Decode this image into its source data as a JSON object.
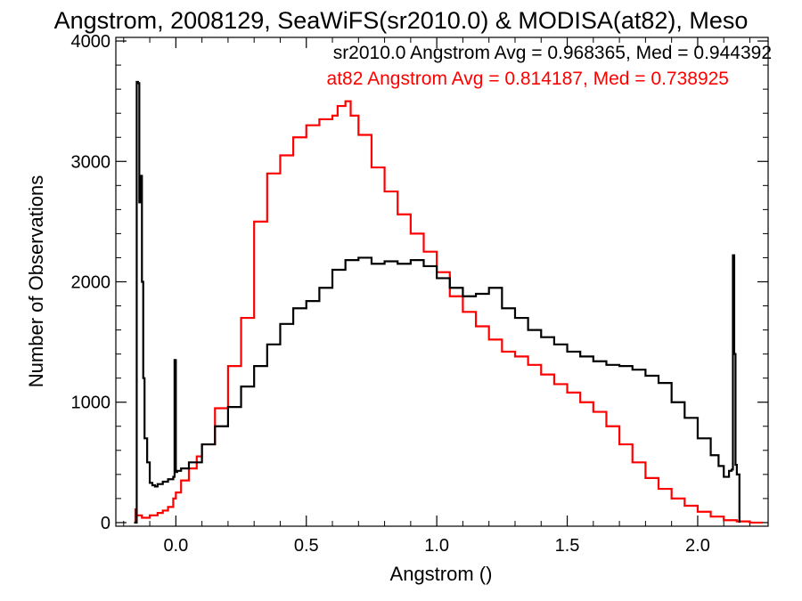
{
  "chart_data": {
    "type": "line",
    "title": "Angstrom, 2008129, SeaWiFS(sr2010.0) & MODISA(at82), Meso",
    "xlabel": "Angstrom ()",
    "ylabel": "Number of Observations",
    "xlim": [
      -0.23,
      2.27
    ],
    "ylim": [
      -30,
      4030
    ],
    "x_ticks": [
      0.0,
      0.5,
      1.0,
      1.5,
      2.0
    ],
    "x_tick_labels": [
      "0.0",
      "0.5",
      "1.0",
      "1.5",
      "2.0"
    ],
    "y_ticks": [
      0,
      1000,
      2000,
      3000,
      4000
    ],
    "y_tick_labels": [
      "0",
      "1000",
      "2000",
      "3000",
      "4000"
    ],
    "grid": false,
    "step": true,
    "annotations": [
      {
        "text": "sr2010.0 Angstrom Avg = 0.968365, Med = 0.944392",
        "color": "#000000"
      },
      {
        "text": "at82 Angstrom Avg = 0.814187, Med = 0.738925",
        "color": "#ff0000"
      }
    ],
    "series": [
      {
        "name": "sr2010.0",
        "color": "#000000",
        "x": [
          -0.16,
          -0.15,
          -0.145,
          -0.14,
          -0.135,
          -0.13,
          -0.125,
          -0.12,
          -0.11,
          -0.1,
          -0.09,
          -0.08,
          -0.07,
          -0.05,
          -0.03,
          -0.01,
          -0.005,
          0.0,
          0.005,
          0.02,
          0.05,
          0.1,
          0.15,
          0.2,
          0.25,
          0.3,
          0.35,
          0.4,
          0.45,
          0.5,
          0.55,
          0.6,
          0.65,
          0.7,
          0.75,
          0.8,
          0.85,
          0.9,
          0.95,
          1.0,
          1.05,
          1.1,
          1.15,
          1.2,
          1.25,
          1.3,
          1.35,
          1.4,
          1.45,
          1.5,
          1.55,
          1.6,
          1.65,
          1.7,
          1.75,
          1.8,
          1.85,
          1.9,
          1.95,
          2.0,
          2.05,
          2.08,
          2.1,
          2.12,
          2.13,
          2.135,
          2.14,
          2.145,
          2.15,
          2.16
        ],
        "y": [
          0,
          3660,
          3650,
          2660,
          2880,
          2000,
          1200,
          700,
          500,
          330,
          310,
          300,
          320,
          340,
          360,
          380,
          1350,
          420,
          430,
          450,
          500,
          650,
          800,
          960,
          1130,
          1300,
          1480,
          1650,
          1780,
          1840,
          1950,
          2100,
          2180,
          2200,
          2150,
          2170,
          2150,
          2180,
          2130,
          2030,
          1950,
          1880,
          1900,
          1950,
          1780,
          1700,
          1600,
          1540,
          1480,
          1420,
          1380,
          1340,
          1310,
          1300,
          1270,
          1220,
          1160,
          1000,
          870,
          700,
          560,
          470,
          380,
          430,
          440,
          2220,
          1400,
          480,
          400,
          0
        ]
      },
      {
        "name": "at82",
        "color": "#ff0000",
        "x": [
          -0.16,
          -0.155,
          -0.15,
          -0.13,
          -0.1,
          -0.07,
          -0.05,
          -0.03,
          -0.01,
          0.0,
          0.02,
          0.05,
          0.08,
          0.1,
          0.15,
          0.2,
          0.25,
          0.3,
          0.35,
          0.4,
          0.45,
          0.5,
          0.55,
          0.6,
          0.62,
          0.65,
          0.67,
          0.7,
          0.75,
          0.8,
          0.85,
          0.9,
          0.95,
          1.0,
          1.05,
          1.1,
          1.15,
          1.2,
          1.25,
          1.3,
          1.35,
          1.4,
          1.45,
          1.5,
          1.55,
          1.6,
          1.65,
          1.7,
          1.75,
          1.8,
          1.85,
          1.9,
          1.95,
          2.0,
          2.05,
          2.1,
          2.15,
          2.2,
          2.25
        ],
        "y": [
          0,
          110,
          60,
          40,
          60,
          80,
          100,
          130,
          200,
          250,
          350,
          450,
          550,
          650,
          950,
          1300,
          1700,
          2500,
          2900,
          3050,
          3200,
          3300,
          3350,
          3380,
          3460,
          3500,
          3380,
          3220,
          2950,
          2750,
          2560,
          2400,
          2250,
          2080,
          1880,
          1750,
          1630,
          1520,
          1420,
          1380,
          1310,
          1230,
          1150,
          1080,
          1000,
          920,
          800,
          650,
          500,
          370,
          280,
          200,
          140,
          90,
          50,
          20,
          10,
          0,
          0
        ]
      }
    ]
  }
}
